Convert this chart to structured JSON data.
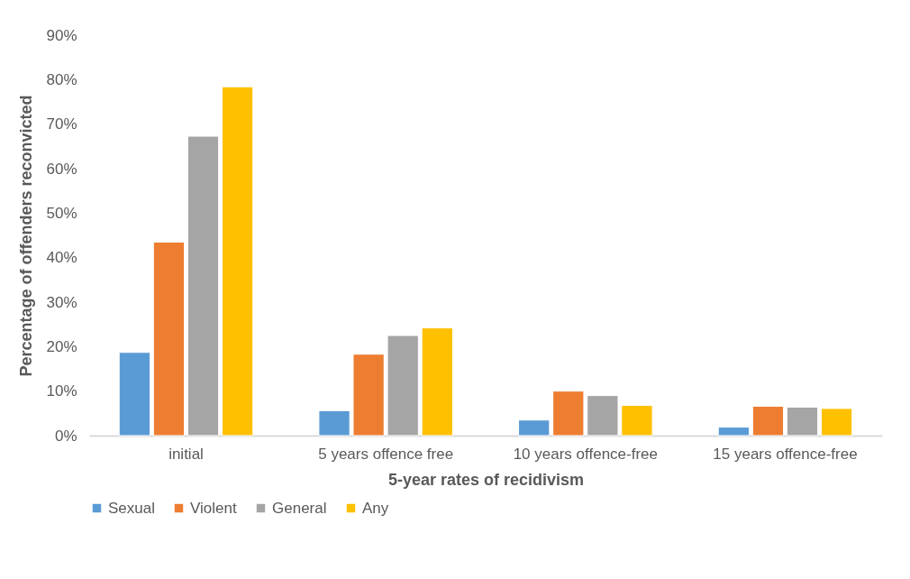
{
  "chart_data": {
    "type": "bar",
    "xlabel": "5-year rates of recidivism",
    "ylabel": "Percentage of offenders reconvicted",
    "categories": [
      "initial",
      "5 years offence free",
      "10 years offence-free",
      "15 years offence-free"
    ],
    "series": [
      {
        "name": "Sexual",
        "color": "#5b9bd5",
        "values": [
          18.7,
          5.6,
          3.5,
          1.9
        ]
      },
      {
        "name": "Violent",
        "color": "#ed7d31",
        "values": [
          43.5,
          18.3,
          10.0,
          6.6
        ]
      },
      {
        "name": "General",
        "color": "#a5a5a5",
        "values": [
          67.3,
          22.5,
          9.0,
          6.4
        ]
      },
      {
        "name": "Any",
        "color": "#ffc000",
        "values": [
          78.4,
          24.2,
          6.8,
          6.1
        ]
      }
    ],
    "ylim": [
      0,
      90
    ],
    "yticks": [
      {
        "value": 0,
        "label": "0%"
      },
      {
        "value": 10,
        "label": "10%"
      },
      {
        "value": 20,
        "label": "20%"
      },
      {
        "value": 30,
        "label": "30%"
      },
      {
        "value": 40,
        "label": "40%"
      },
      {
        "value": 50,
        "label": "50%"
      },
      {
        "value": 60,
        "label": "60%"
      },
      {
        "value": 70,
        "label": "70%"
      },
      {
        "value": 80,
        "label": "80%"
      },
      {
        "value": 90,
        "label": "90%"
      }
    ],
    "grid": false,
    "legend": "bottom"
  }
}
